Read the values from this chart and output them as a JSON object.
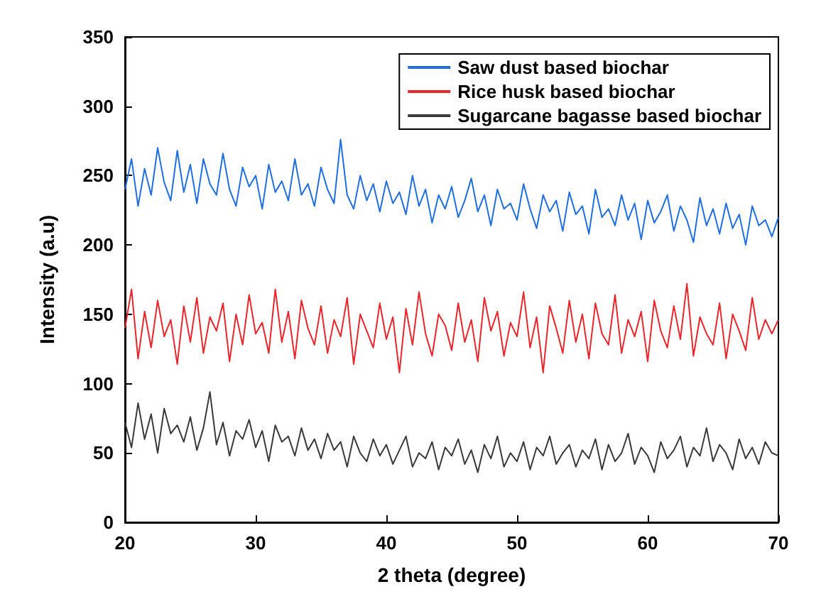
{
  "chart_data": {
    "type": "line",
    "xlabel": "2 theta (degree)",
    "ylabel": "Intensity (a.u)",
    "x": [
      20,
      20.5,
      21,
      21.5,
      22,
      22.5,
      23,
      23.5,
      24,
      24.5,
      25,
      25.5,
      26,
      26.5,
      27,
      27.5,
      28,
      28.5,
      29,
      29.5,
      30,
      30.5,
      31,
      31.5,
      32,
      32.5,
      33,
      33.5,
      34,
      34.5,
      35,
      35.5,
      36,
      36.5,
      37,
      37.5,
      38,
      38.5,
      39,
      39.5,
      40,
      40.5,
      41,
      41.5,
      42,
      42.5,
      43,
      43.5,
      44,
      44.5,
      45,
      45.5,
      46,
      46.5,
      47,
      47.5,
      48,
      48.5,
      49,
      49.5,
      50,
      50.5,
      51,
      51.5,
      52,
      52.5,
      53,
      53.5,
      54,
      54.5,
      55,
      55.5,
      56,
      56.5,
      57,
      57.5,
      58,
      58.5,
      59,
      59.5,
      60,
      60.5,
      61,
      61.5,
      62,
      62.5,
      63,
      63.5,
      64,
      64.5,
      65,
      65.5,
      66,
      66.5,
      67,
      67.5,
      68,
      68.5,
      69,
      69.5,
      70
    ],
    "series": [
      {
        "name": "Saw dust based biochar",
        "color": "#1f6fe0",
        "values": [
          240,
          262,
          228,
          255,
          236,
          270,
          245,
          232,
          268,
          238,
          258,
          230,
          262,
          244,
          236,
          266,
          240,
          228,
          256,
          242,
          250,
          226,
          258,
          238,
          246,
          232,
          262,
          236,
          244,
          228,
          256,
          240,
          230,
          276,
          236,
          226,
          250,
          232,
          244,
          224,
          246,
          230,
          238,
          222,
          250,
          228,
          240,
          216,
          236,
          226,
          242,
          220,
          232,
          248,
          224,
          236,
          214,
          240,
          226,
          230,
          218,
          244,
          226,
          212,
          236,
          224,
          232,
          210,
          238,
          222,
          228,
          208,
          240,
          220,
          226,
          214,
          236,
          218,
          230,
          204,
          232,
          216,
          224,
          236,
          210,
          228,
          218,
          202,
          234,
          214,
          226,
          208,
          230,
          212,
          222,
          200,
          228,
          214,
          218,
          206,
          220
        ]
      },
      {
        "name": "Rice husk based biochar",
        "color": "#e8262b",
        "values": [
          140,
          168,
          118,
          152,
          126,
          160,
          134,
          146,
          114,
          156,
          130,
          162,
          122,
          148,
          138,
          158,
          116,
          150,
          128,
          164,
          136,
          144,
          122,
          168,
          130,
          152,
          118,
          160,
          140,
          128,
          156,
          122,
          146,
          134,
          162,
          114,
          150,
          138,
          126,
          158,
          132,
          148,
          108,
          154,
          128,
          166,
          136,
          120,
          150,
          142,
          124,
          158,
          130,
          146,
          116,
          162,
          138,
          152,
          120,
          144,
          134,
          166,
          126,
          148,
          108,
          156,
          140,
          122,
          160,
          130,
          150,
          118,
          158,
          136,
          128,
          164,
          122,
          146,
          134,
          152,
          116,
          160,
          138,
          126,
          156,
          132,
          172,
          120,
          148,
          136,
          128,
          158,
          118,
          150,
          138,
          124,
          162,
          132,
          146,
          136,
          146
        ]
      },
      {
        "name": "Sugarcane bagasse based biochar",
        "color": "#3a3a3a",
        "values": [
          72,
          54,
          86,
          60,
          78,
          50,
          82,
          64,
          70,
          58,
          76,
          52,
          68,
          94,
          56,
          72,
          48,
          66,
          60,
          74,
          54,
          66,
          44,
          70,
          58,
          62,
          48,
          68,
          52,
          60,
          46,
          64,
          52,
          58,
          40,
          62,
          50,
          44,
          60,
          48,
          56,
          42,
          52,
          62,
          40,
          50,
          46,
          58,
          38,
          54,
          48,
          60,
          42,
          52,
          36,
          56,
          46,
          62,
          40,
          50,
          44,
          58,
          38,
          54,
          48,
          62,
          42,
          50,
          56,
          40,
          52,
          46,
          60,
          38,
          56,
          44,
          50,
          64,
          42,
          54,
          48,
          36,
          58,
          46,
          52,
          62,
          40,
          54,
          48,
          68,
          44,
          56,
          50,
          38,
          60,
          46,
          54,
          42,
          58,
          50,
          48
        ]
      }
    ],
    "xlim": [
      20,
      70
    ],
    "xticks": [
      20,
      30,
      40,
      50,
      60,
      70
    ],
    "ylim": [
      0,
      350
    ],
    "yticks": [
      0,
      50,
      100,
      150,
      200,
      250,
      300,
      350
    ],
    "grid": false,
    "legend": "top right",
    "marker": "none",
    "line_style": "solid"
  }
}
